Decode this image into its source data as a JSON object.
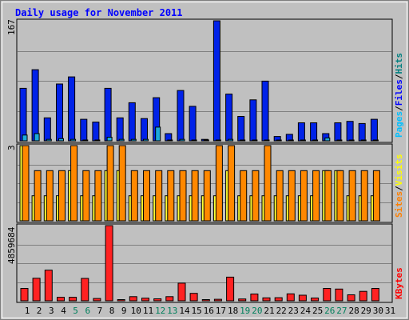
{
  "chart_data": [
    {
      "type": "bar",
      "title": "Daily usage for November 2011",
      "categories": [
        "1",
        "2",
        "3",
        "4",
        "5",
        "6",
        "7",
        "8",
        "9",
        "10",
        "11",
        "12",
        "13",
        "14",
        "15",
        "16",
        "17",
        "18",
        "19",
        "20",
        "21",
        "22",
        "23",
        "24",
        "25",
        "26",
        "27",
        "28",
        "29",
        "30",
        "31"
      ],
      "weekend_days": [
        "5",
        "6",
        "12",
        "13",
        "19",
        "20",
        "26",
        "27"
      ],
      "ymax_label": "167",
      "ymax": 167,
      "series": [
        {
          "name": "Hits",
          "color": "#0022e8",
          "values": [
            73,
            99,
            32,
            79,
            89,
            30,
            26,
            73,
            32,
            53,
            31,
            60,
            10,
            70,
            48,
            2,
            167,
            65,
            34,
            57,
            83,
            6,
            9,
            25,
            25,
            10,
            25,
            27,
            24,
            30,
            0
          ]
        },
        {
          "name": "Files",
          "color": "#1ca9dc",
          "values": [
            8,
            10,
            2,
            3,
            2,
            1,
            1,
            5,
            2,
            2,
            2,
            19,
            1,
            2,
            1,
            1,
            1,
            2,
            1,
            1,
            1,
            1,
            1,
            1,
            1,
            4,
            1,
            1,
            1,
            1,
            0
          ]
        }
      ],
      "right_axis_label": [
        "Pages",
        "Files",
        "Hits"
      ]
    },
    {
      "type": "bar",
      "ymax_label": "3",
      "ymax": 3,
      "series": [
        {
          "name": "Visits",
          "color": "#ffff33",
          "values": [
            3,
            1,
            1,
            1,
            2,
            1,
            1,
            2,
            2,
            1,
            1,
            1,
            1,
            1,
            1,
            1,
            1,
            2,
            1,
            1,
            1,
            1,
            1,
            1,
            1,
            2,
            2,
            1,
            1,
            1,
            0
          ]
        },
        {
          "name": "Sites",
          "color": "#ff8800",
          "values": [
            3,
            2,
            2,
            2,
            3,
            2,
            2,
            3,
            3,
            2,
            2,
            2,
            2,
            2,
            2,
            2,
            3,
            3,
            2,
            2,
            3,
            2,
            2,
            2,
            2,
            2,
            2,
            2,
            2,
            2,
            0
          ]
        }
      ],
      "right_axis_label": [
        "Sites",
        "Visits"
      ]
    },
    {
      "type": "bar",
      "ymax_label": "4859684",
      "ymax": 4859684,
      "series": [
        {
          "name": "KBytes",
          "color": "#ff2222",
          "values": [
            800000,
            1460000,
            1980000,
            230000,
            230000,
            1450000,
            150000,
            4859684,
            80000,
            270000,
            170000,
            130000,
            270000,
            1140000,
            480000,
            80000,
            100000,
            1530000,
            120000,
            440000,
            190000,
            200000,
            450000,
            360000,
            180000,
            800000,
            760000,
            390000,
            610000,
            800000,
            0
          ]
        }
      ],
      "right_axis_label": [
        "KBytes"
      ]
    }
  ],
  "colors": {
    "title": "#0000ff",
    "weekday_label": "#000000",
    "weekend_label": "#00805c",
    "pages_label": "#00c0ff",
    "files_label": "#0000ff",
    "hits_label": "#008080",
    "visits_label": "#ffff00",
    "sites_label": "#ff8000",
    "kbytes_label": "#ff0000"
  }
}
